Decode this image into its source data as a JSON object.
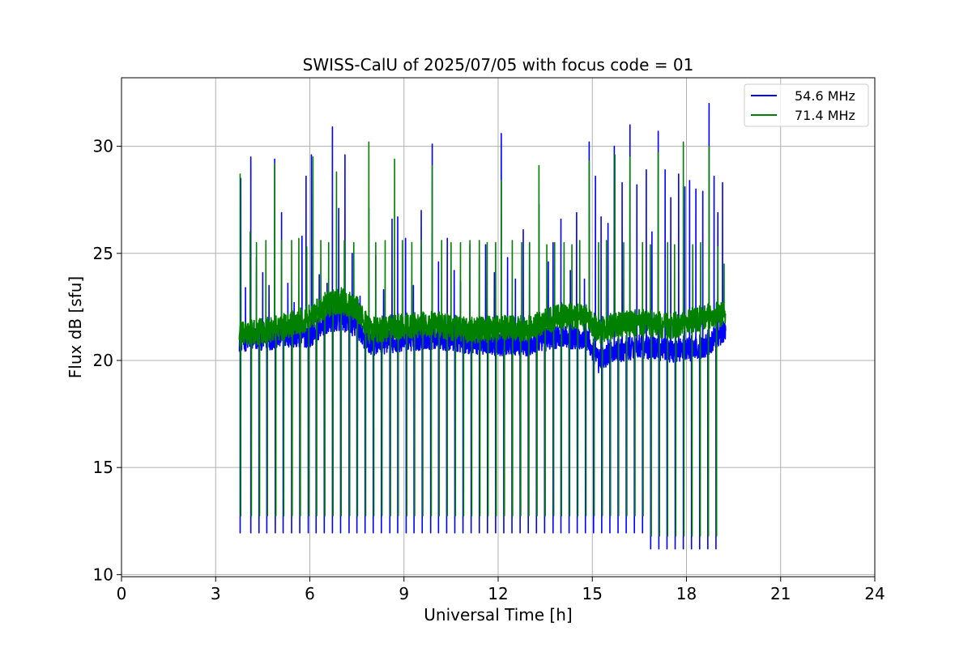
{
  "chart_data": {
    "type": "line",
    "title": "SWISS-CalU of 2025/07/05 with focus code = 01",
    "xlabel": "Universal Time [h]",
    "ylabel": "Flux dB [sfu]",
    "xlim": [
      0,
      24
    ],
    "ylim": [
      9.9,
      33.2
    ],
    "xticks": [
      0,
      3,
      6,
      9,
      12,
      15,
      18,
      21,
      24
    ],
    "yticks": [
      10,
      15,
      20,
      25,
      30
    ],
    "xtick_labels": [
      "0",
      "3",
      "6",
      "9",
      "12",
      "15",
      "18",
      "21",
      "24"
    ],
    "ytick_labels": [
      "10",
      "15",
      "20",
      "25",
      "30"
    ],
    "grid": true,
    "legend_position": "top-right",
    "data_start": 3.75,
    "data_end": 19.25,
    "series": [
      {
        "name": "54.6 MHz",
        "color": "#0000ff",
        "baseline": [
          [
            3.75,
            20.8
          ],
          [
            5.0,
            20.9
          ],
          [
            6.0,
            21.0
          ],
          [
            6.5,
            21.6
          ],
          [
            7.0,
            21.8
          ],
          [
            7.5,
            21.4
          ],
          [
            7.9,
            20.6
          ],
          [
            9.0,
            20.8
          ],
          [
            10.0,
            20.9
          ],
          [
            11.0,
            20.7
          ],
          [
            12.0,
            20.6
          ],
          [
            13.0,
            20.6
          ],
          [
            14.0,
            21.0
          ],
          [
            14.8,
            20.8
          ],
          [
            15.2,
            19.8
          ],
          [
            15.6,
            20.2
          ],
          [
            16.5,
            20.5
          ],
          [
            17.5,
            20.3
          ],
          [
            18.5,
            20.4
          ],
          [
            19.25,
            21.3
          ]
        ],
        "noise": 0.55,
        "calibration_dips": [
          3.78,
          4.12,
          4.38,
          4.63,
          4.9,
          5.15,
          5.42,
          5.68,
          5.95,
          6.2,
          6.46,
          6.72,
          6.98,
          7.25,
          7.5,
          7.76,
          8.02,
          8.28,
          8.55,
          8.8,
          9.07,
          9.32,
          9.58,
          9.85,
          10.1,
          10.36,
          10.62,
          10.88,
          11.14,
          11.4,
          11.66,
          11.92,
          12.18,
          12.44,
          12.7,
          12.96,
          13.22,
          13.48,
          13.75,
          14.0,
          14.26,
          14.52,
          14.78,
          15.04,
          15.3,
          15.56,
          15.82,
          16.08,
          16.34,
          16.6,
          16.86,
          17.12,
          17.38,
          17.64,
          17.9,
          18.16,
          18.42,
          18.68,
          18.94
        ],
        "dip_value": 11.95,
        "late_dip_value": 11.2,
        "spikes": [
          [
            3.8,
            28.5
          ],
          [
            3.95,
            23.4
          ],
          [
            4.12,
            29.5
          ],
          [
            4.3,
            24.8
          ],
          [
            4.5,
            24.1
          ],
          [
            4.7,
            23.5
          ],
          [
            4.88,
            29.4
          ],
          [
            5.1,
            26.9
          ],
          [
            5.3,
            23.6
          ],
          [
            5.5,
            22.7
          ],
          [
            5.75,
            25.8
          ],
          [
            5.88,
            28.6
          ],
          [
            6.05,
            29.6
          ],
          [
            6.3,
            24.0
          ],
          [
            6.55,
            23.6
          ],
          [
            6.72,
            30.9
          ],
          [
            6.92,
            27.1
          ],
          [
            7.12,
            29.6
          ],
          [
            7.35,
            25.0
          ],
          [
            7.6,
            23.0
          ],
          [
            7.88,
            27.1
          ],
          [
            8.1,
            24.9
          ],
          [
            8.35,
            23.3
          ],
          [
            8.62,
            26.6
          ],
          [
            8.8,
            26.7
          ],
          [
            9.05,
            25.7
          ],
          [
            9.3,
            23.5
          ],
          [
            9.55,
            27.0
          ],
          [
            9.9,
            30.1
          ],
          [
            10.1,
            24.6
          ],
          [
            10.38,
            25.7
          ],
          [
            10.6,
            24.2
          ],
          [
            10.8,
            23.7
          ],
          [
            11.1,
            25.4
          ],
          [
            11.4,
            24.9
          ],
          [
            11.6,
            25.4
          ],
          [
            11.88,
            24.1
          ],
          [
            12.1,
            30.6
          ],
          [
            12.3,
            24.8
          ],
          [
            12.55,
            23.8
          ],
          [
            12.8,
            26.1
          ],
          [
            13.0,
            25.5
          ],
          [
            13.3,
            27.3
          ],
          [
            13.6,
            24.6
          ],
          [
            13.75,
            25.5
          ],
          [
            14.0,
            26.6
          ],
          [
            14.3,
            24.2
          ],
          [
            14.5,
            26.9
          ],
          [
            14.75,
            23.8
          ],
          [
            14.9,
            30.2
          ],
          [
            15.1,
            28.6
          ],
          [
            15.28,
            26.7
          ],
          [
            15.5,
            26.4
          ],
          [
            15.7,
            30.0
          ],
          [
            15.95,
            28.3
          ],
          [
            16.2,
            31.0
          ],
          [
            16.42,
            28.2
          ],
          [
            16.72,
            28.9
          ],
          [
            16.9,
            26.0
          ],
          [
            17.1,
            30.7
          ],
          [
            17.32,
            28.9
          ],
          [
            17.5,
            27.6
          ],
          [
            17.75,
            28.7
          ],
          [
            17.95,
            28.1
          ],
          [
            18.1,
            28.4
          ],
          [
            18.3,
            28.0
          ],
          [
            18.52,
            27.9
          ],
          [
            18.72,
            32.0
          ],
          [
            18.88,
            28.6
          ],
          [
            19.0,
            26.9
          ],
          [
            19.15,
            28.3
          ]
        ]
      },
      {
        "name": "71.4 MHz",
        "color": "#008000",
        "baseline": [
          [
            3.75,
            21.0
          ],
          [
            5.0,
            21.3
          ],
          [
            6.0,
            21.8
          ],
          [
            6.5,
            22.4
          ],
          [
            7.0,
            22.6
          ],
          [
            7.5,
            22.2
          ],
          [
            7.9,
            21.2
          ],
          [
            9.0,
            21.4
          ],
          [
            10.0,
            21.5
          ],
          [
            11.0,
            21.2
          ],
          [
            12.0,
            21.3
          ],
          [
            13.0,
            21.3
          ],
          [
            14.0,
            21.9
          ],
          [
            14.8,
            21.8
          ],
          [
            15.2,
            21.2
          ],
          [
            15.6,
            21.4
          ],
          [
            16.5,
            21.6
          ],
          [
            17.5,
            21.4
          ],
          [
            18.5,
            21.8
          ],
          [
            19.25,
            22.0
          ]
        ],
        "noise": 0.6,
        "calibration_dips": [
          3.8,
          4.14,
          4.4,
          4.65,
          4.92,
          5.17,
          5.44,
          5.7,
          5.97,
          6.22,
          6.48,
          6.74,
          7.0,
          7.27,
          7.52,
          7.78,
          8.04,
          8.3,
          8.57,
          8.82,
          9.09,
          9.34,
          9.6,
          9.87,
          10.12,
          10.38,
          10.64,
          10.9,
          11.16,
          11.42,
          11.68,
          11.94,
          12.2,
          12.46,
          12.72,
          12.98,
          13.24,
          13.5,
          13.77,
          14.02,
          14.28,
          14.54,
          14.8,
          15.06,
          15.32,
          15.58,
          15.84,
          16.1,
          16.36,
          16.62,
          16.88,
          17.14,
          17.4,
          17.66,
          17.92,
          18.18,
          18.44,
          18.7,
          18.96
        ],
        "dip_value": 12.75,
        "late_dip_value": 11.8,
        "spikes": [
          [
            3.78,
            28.7
          ],
          [
            4.1,
            26.0
          ],
          [
            4.3,
            25.5
          ],
          [
            4.6,
            25.6
          ],
          [
            4.88,
            29.2
          ],
          [
            5.1,
            25.6
          ],
          [
            5.42,
            25.6
          ],
          [
            5.65,
            25.7
          ],
          [
            5.9,
            25.3
          ],
          [
            6.1,
            29.5
          ],
          [
            6.35,
            25.6
          ],
          [
            6.6,
            25.5
          ],
          [
            6.85,
            28.8
          ],
          [
            7.1,
            25.6
          ],
          [
            7.4,
            25.5
          ],
          [
            7.88,
            30.2
          ],
          [
            8.1,
            25.5
          ],
          [
            8.4,
            25.6
          ],
          [
            8.7,
            29.4
          ],
          [
            8.95,
            25.6
          ],
          [
            9.25,
            25.5
          ],
          [
            9.55,
            25.6
          ],
          [
            9.9,
            29.1
          ],
          [
            10.2,
            25.6
          ],
          [
            10.5,
            25.5
          ],
          [
            10.8,
            25.5
          ],
          [
            11.1,
            25.6
          ],
          [
            11.4,
            25.6
          ],
          [
            11.65,
            25.5
          ],
          [
            11.92,
            25.5
          ],
          [
            12.1,
            28.4
          ],
          [
            12.45,
            25.6
          ],
          [
            12.75,
            25.5
          ],
          [
            13.0,
            25.5
          ],
          [
            13.3,
            29.1
          ],
          [
            13.55,
            25.4
          ],
          [
            13.8,
            25.5
          ],
          [
            14.1,
            25.5
          ],
          [
            14.35,
            25.4
          ],
          [
            14.6,
            25.6
          ],
          [
            14.9,
            29.3
          ],
          [
            15.2,
            25.5
          ],
          [
            15.45,
            25.6
          ],
          [
            15.72,
            29.6
          ],
          [
            16.0,
            25.5
          ],
          [
            16.2,
            29.5
          ],
          [
            16.6,
            25.5
          ],
          [
            16.85,
            25.4
          ],
          [
            17.1,
            29.7
          ],
          [
            17.4,
            25.5
          ],
          [
            17.62,
            25.4
          ],
          [
            17.9,
            30.2
          ],
          [
            18.2,
            25.4
          ],
          [
            18.45,
            25.5
          ],
          [
            18.72,
            30.0
          ],
          [
            19.0,
            25.3
          ],
          [
            19.2,
            24.5
          ]
        ]
      }
    ]
  }
}
